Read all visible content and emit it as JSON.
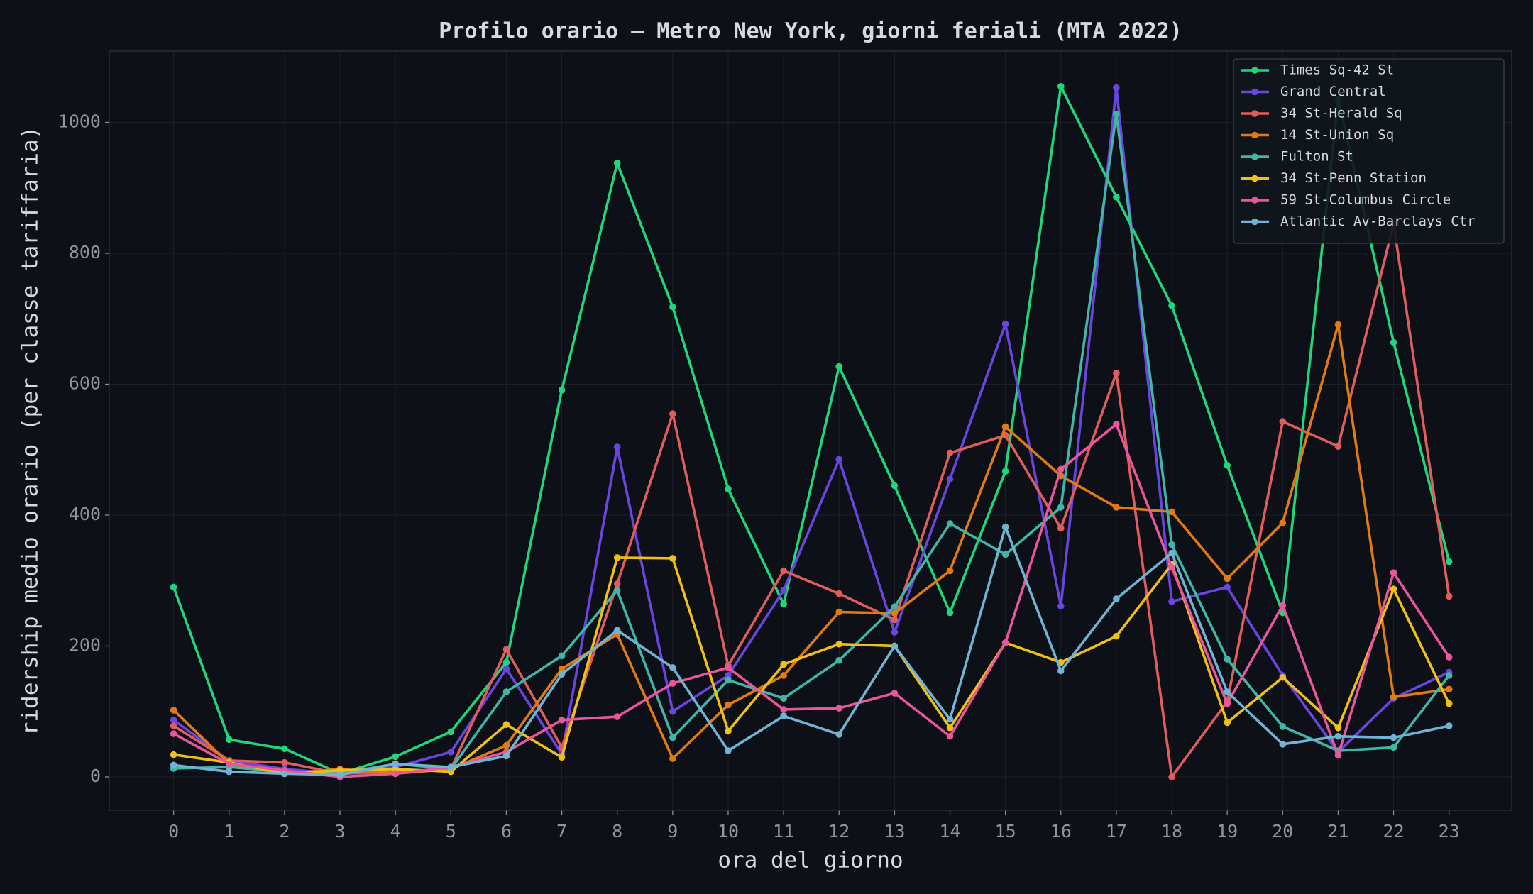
{
  "chart_data": {
    "type": "line",
    "title": "Profilo orario — Metro New York, giorni feriali (MTA 2022)",
    "x_label": "ora del giorno",
    "y_label": "ridership medio orario (per classe tariffaria)",
    "x": [
      0,
      1,
      2,
      3,
      4,
      5,
      6,
      7,
      8,
      9,
      10,
      11,
      12,
      13,
      14,
      15,
      16,
      17,
      18,
      19,
      20,
      21,
      22,
      23
    ],
    "xlim": [
      -1.16,
      24.13
    ],
    "xticks": [
      0,
      1,
      2,
      3,
      4,
      5,
      6,
      7,
      8,
      9,
      10,
      11,
      12,
      13,
      14,
      15,
      16,
      17,
      18,
      19,
      20,
      21,
      22,
      23
    ],
    "ylim": [
      -51,
      1109
    ],
    "yticks": [
      0,
      200,
      400,
      600,
      800,
      1000
    ],
    "grid": true,
    "legend": "upper right",
    "series": [
      {
        "name": "Times Sq-42 St",
        "color": "#1fd67c",
        "values": [
          290,
          57,
          43,
          5,
          31,
          69,
          175,
          591,
          938,
          718,
          440,
          264,
          627,
          445,
          251,
          467,
          1055,
          886,
          720,
          476,
          251,
          1035,
          664,
          329
        ]
      },
      {
        "name": "Grand Central",
        "color": "#6b45e0",
        "values": [
          87,
          25,
          12,
          5,
          15,
          38,
          165,
          35,
          504,
          100,
          155,
          285,
          485,
          221,
          455,
          692,
          261,
          1053,
          268,
          290,
          155,
          38,
          120,
          160
        ]
      },
      {
        "name": "34 St-Herald Sq",
        "color": "#e05d5d",
        "values": [
          78,
          25,
          22,
          5,
          8,
          12,
          195,
          45,
          295,
          555,
          170,
          315,
          280,
          240,
          495,
          522,
          380,
          617,
          0,
          115,
          543,
          505,
          845,
          276
        ]
      },
      {
        "name": "14 St-Union Sq",
        "color": "#e07b14",
        "values": [
          102,
          20,
          5,
          12,
          5,
          12,
          48,
          165,
          218,
          28,
          110,
          155,
          252,
          250,
          315,
          535,
          460,
          412,
          405,
          303,
          388,
          691,
          122,
          134
        ]
      },
      {
        "name": "Fulton St",
        "color": "#40b5a8",
        "values": [
          13,
          15,
          8,
          5,
          20,
          12,
          130,
          185,
          285,
          60,
          148,
          120,
          178,
          260,
          387,
          340,
          412,
          1013,
          355,
          180,
          77,
          40,
          45,
          155
        ]
      },
      {
        "name": "34 St-Penn Station",
        "color": "#f0c018",
        "values": [
          34,
          22,
          5,
          10,
          12,
          8,
          80,
          30,
          335,
          334,
          70,
          172,
          203,
          200,
          75,
          205,
          175,
          215,
          325,
          83,
          152,
          75,
          287,
          112
        ]
      },
      {
        "name": "59 St-Columbus Circle",
        "color": "#e8569b",
        "values": [
          66,
          20,
          10,
          0,
          5,
          15,
          38,
          87,
          92,
          143,
          167,
          103,
          105,
          128,
          62,
          205,
          470,
          539,
          320,
          112,
          262,
          33,
          312,
          183
        ]
      },
      {
        "name": "Atlantic Av-Barclays Ctr",
        "color": "#70b4d4",
        "values": [
          18,
          8,
          5,
          3,
          20,
          15,
          32,
          157,
          224,
          167,
          40,
          93,
          65,
          200,
          88,
          382,
          162,
          272,
          342,
          130,
          50,
          62,
          60,
          78
        ]
      }
    ]
  }
}
